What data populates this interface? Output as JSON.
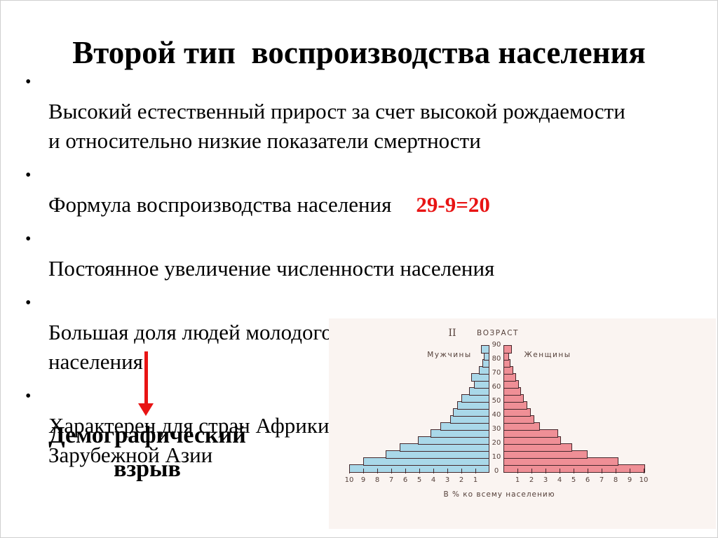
{
  "slide": {
    "title": "Второй тип  воспроизводства населения",
    "bullets": [
      {
        "text": "Высокий естественный прирост за счет высокой рождаемости\nи относительно низкие показатели смертности"
      },
      {
        "text": "Формула воспроизводства населения",
        "highlight": "29-9=20"
      },
      {
        "text": "Постоянное увеличение численности населения"
      },
      {
        "text": "Большая доля людей молодого возраста в общей численности\nнаселения"
      },
      {
        "text": "Характерен для стран Африки, Латинской Америки и\nЗарубежной Азии"
      }
    ],
    "bullet_char": "•",
    "callout": {
      "label": "Демографический\nвзрыв"
    },
    "colors": {
      "accent_red": "#e81414",
      "text": "#000000"
    }
  },
  "chart_data": {
    "type": "bar",
    "subtype": "population_pyramid",
    "title_marker": "II",
    "age_axis_label": "ВОЗРАСТ",
    "caption": "В % ко всему населению",
    "age_group_span_years": 5,
    "age_tick_labels": [
      "90",
      "80",
      "70",
      "60",
      "50",
      "40",
      "30",
      "20",
      "10",
      "0"
    ],
    "x_ticks_left": [
      "10",
      "9",
      "8",
      "7",
      "6",
      "5",
      "4",
      "3",
      "2",
      "1"
    ],
    "x_ticks_right": [
      "1",
      "2",
      "3",
      "4",
      "5",
      "6",
      "7",
      "8",
      "9",
      "10"
    ],
    "xlim": [
      0,
      10
    ],
    "series": [
      {
        "name": "Мужчины",
        "side": "left",
        "color": "#a9d8e9",
        "values_pct_age_ascending": [
          10.0,
          9.0,
          7.4,
          6.4,
          5.1,
          4.2,
          3.5,
          2.8,
          2.6,
          2.3,
          2.0,
          1.45,
          1.1,
          1.3,
          0.75,
          0.5,
          0.4,
          0.6
        ]
      },
      {
        "name": "Женщины",
        "side": "right",
        "color": "#ef8f96",
        "values_pct_age_ascending": [
          10.1,
          8.2,
          6.0,
          4.9,
          4.1,
          3.9,
          2.6,
          2.2,
          1.95,
          1.7,
          1.45,
          1.25,
          1.1,
          0.9,
          0.7,
          0.5,
          0.4,
          0.6
        ]
      }
    ],
    "styles": {
      "bar_border": "#45272b",
      "label_color": "#55403a",
      "scan_bg": "#faf4f1"
    }
  }
}
